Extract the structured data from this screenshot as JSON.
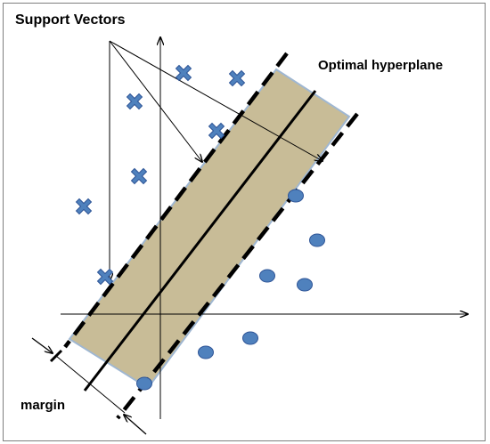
{
  "labels": {
    "support_vectors": "Support Vectors",
    "optimal_hyperplane": "Optimal hyperplane",
    "margin": "margin"
  },
  "colors": {
    "background": "#ffffff",
    "border": "#7f7f7f",
    "margin_band_fill": "#c8bc97",
    "band_edge": "#9fb7d2",
    "marker_fill": "#4f81bd",
    "marker_stroke": "#2f5597",
    "line": "#000000"
  },
  "icons": {
    "class_a_marker": "x-cross-icon",
    "class_b_marker": "circle-dot-icon"
  }
}
